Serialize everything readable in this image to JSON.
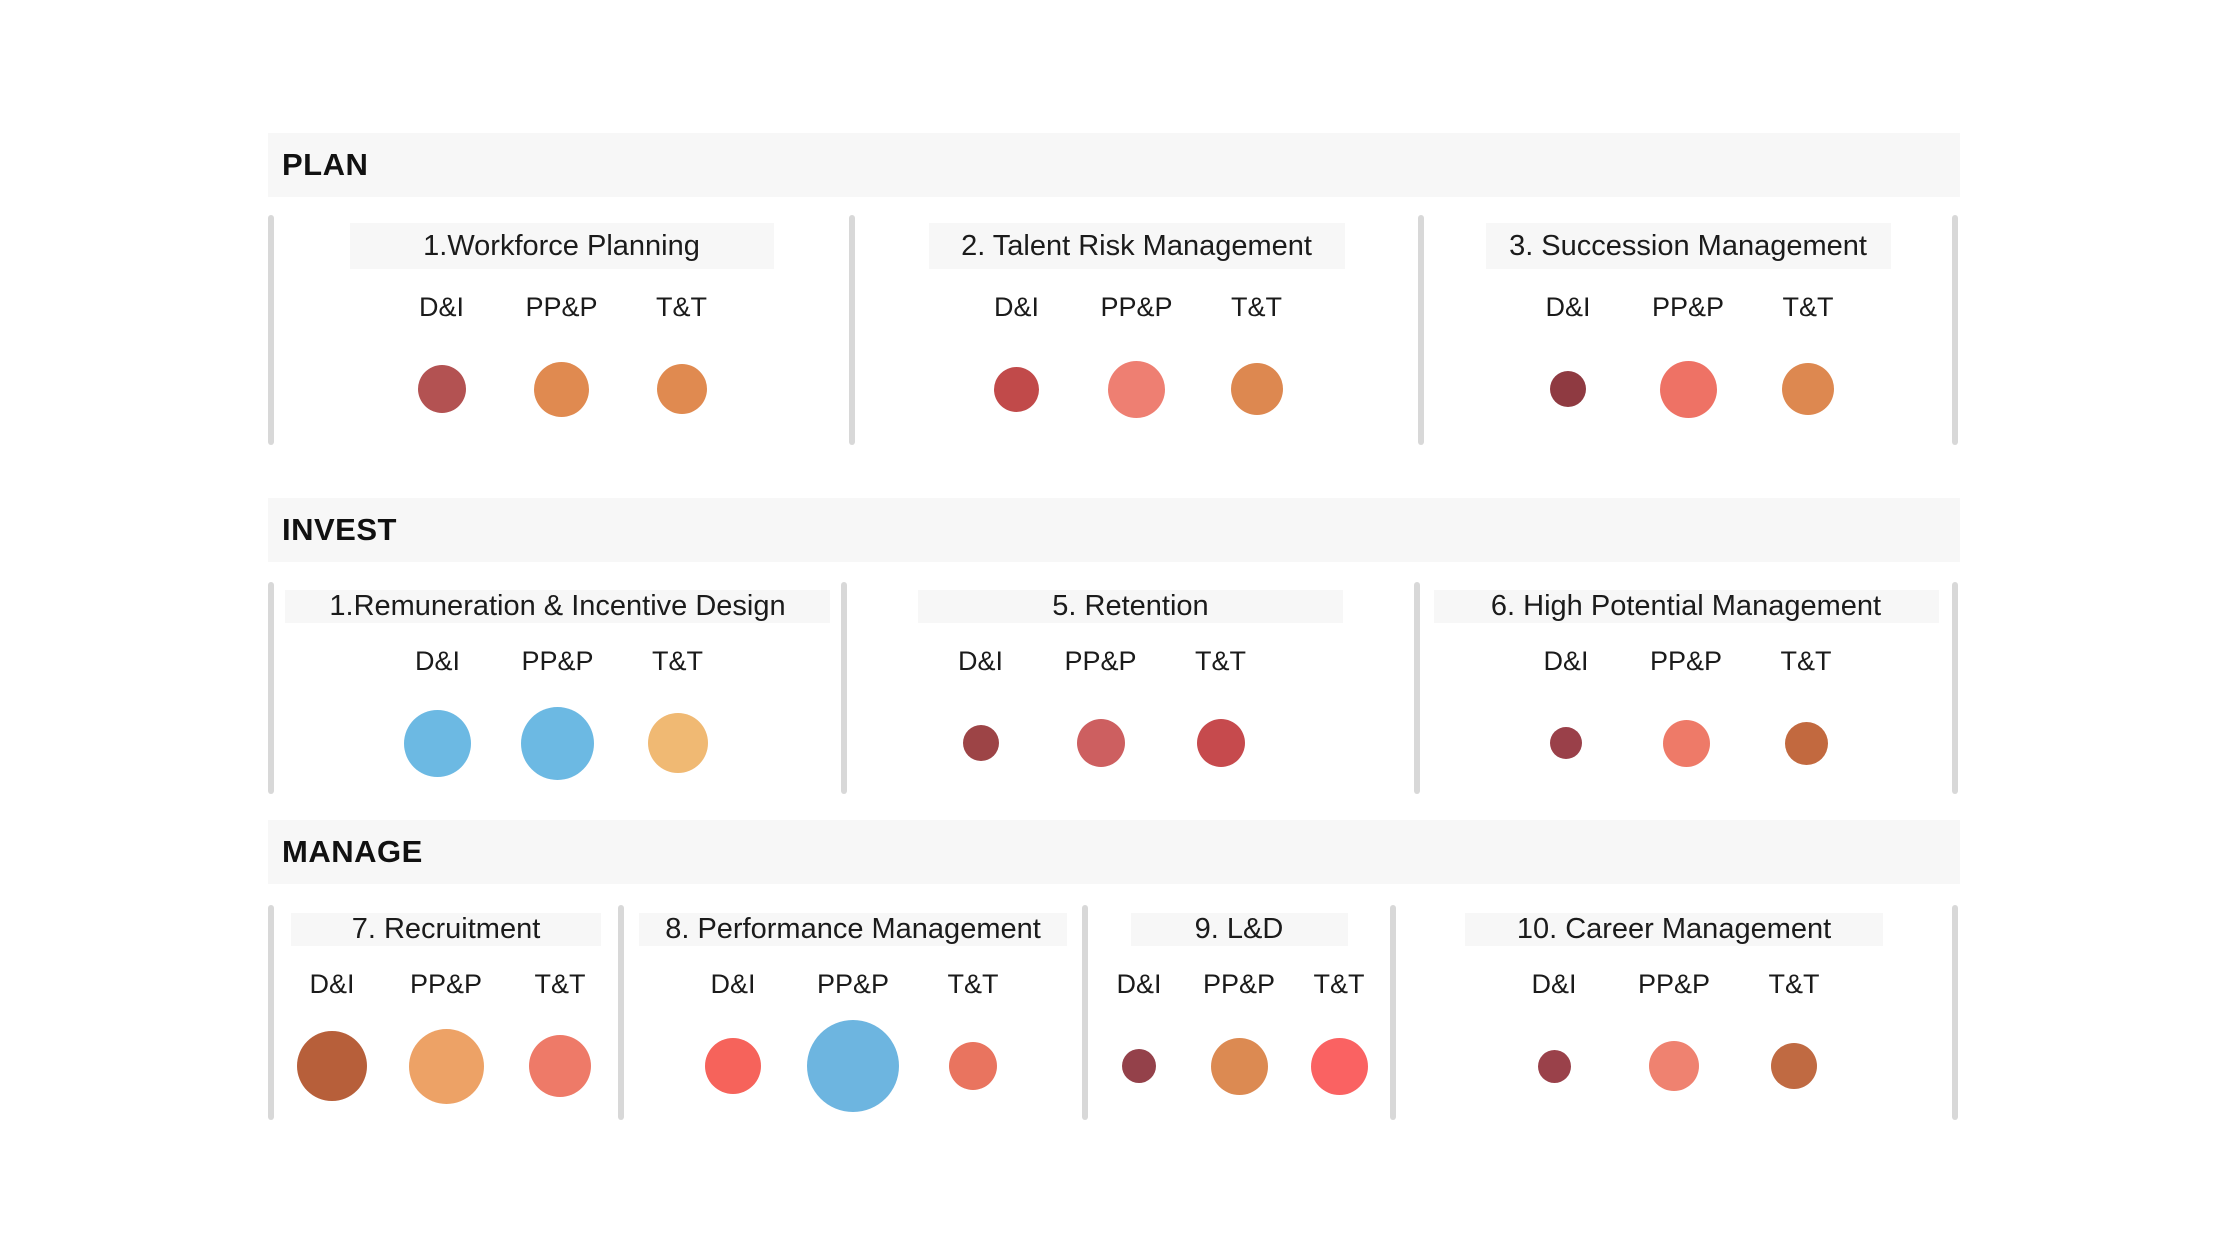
{
  "colors": {
    "background": "#ffffff",
    "section_band_bg": "#f7f7f7",
    "card_title_bg": "#f7f7f7",
    "divider": "#d8d8d8",
    "text": "#1b1b1b"
  },
  "column_labels": [
    "D&I",
    "PP&P",
    "T&T"
  ],
  "sections": [
    {
      "label": "PLAN",
      "cards": [
        {
          "title": "1.Workforce Planning",
          "bubbles": [
            {
              "label": "D&I",
              "color": "#b35252",
              "size": 48
            },
            {
              "label": "PP&P",
              "color": "#e08a50",
              "size": 55
            },
            {
              "label": "T&T",
              "color": "#e08a50",
              "size": 50
            }
          ]
        },
        {
          "title": "2. Talent Risk Management",
          "bubbles": [
            {
              "label": "D&I",
              "color": "#c14a4a",
              "size": 45
            },
            {
              "label": "PP&P",
              "color": "#ee7f72",
              "size": 57
            },
            {
              "label": "T&T",
              "color": "#dd8850",
              "size": 52
            }
          ]
        },
        {
          "title": "3. Succession Management",
          "bubbles": [
            {
              "label": "D&I",
              "color": "#8f3a41",
              "size": 36
            },
            {
              "label": "PP&P",
              "color": "#ee7265",
              "size": 57
            },
            {
              "label": "T&T",
              "color": "#dd8850",
              "size": 52
            }
          ]
        }
      ]
    },
    {
      "label": "INVEST",
      "cards": [
        {
          "title": "1.Remuneration & Incentive Design",
          "bubbles": [
            {
              "label": "D&I",
              "color": "#6cb9e3",
              "size": 67
            },
            {
              "label": "PP&P",
              "color": "#6cb9e3",
              "size": 73
            },
            {
              "label": "T&T",
              "color": "#f0b973",
              "size": 60
            }
          ]
        },
        {
          "title": "5. Retention",
          "bubbles": [
            {
              "label": "D&I",
              "color": "#9d4446",
              "size": 36
            },
            {
              "label": "PP&P",
              "color": "#cd5f60",
              "size": 48
            },
            {
              "label": "T&T",
              "color": "#c64a4d",
              "size": 48
            }
          ]
        },
        {
          "title": "6. High Potential Management",
          "bubbles": [
            {
              "label": "D&I",
              "color": "#9a4049",
              "size": 32
            },
            {
              "label": "PP&P",
              "color": "#ee7a68",
              "size": 47
            },
            {
              "label": "T&T",
              "color": "#c2693f",
              "size": 43
            }
          ]
        }
      ]
    },
    {
      "label": "MANAGE",
      "cards": [
        {
          "title": "7. Recruitment",
          "bubbles": [
            {
              "label": "D&I",
              "color": "#b75f3a",
              "size": 70
            },
            {
              "label": "PP&P",
              "color": "#eda266",
              "size": 75
            },
            {
              "label": "T&T",
              "color": "#ee7a68",
              "size": 62
            }
          ]
        },
        {
          "title": "8. Performance Management",
          "bubbles": [
            {
              "label": "D&I",
              "color": "#f6635b",
              "size": 56
            },
            {
              "label": "PP&P",
              "color": "#6db5e0",
              "size": 92
            },
            {
              "label": "T&T",
              "color": "#e9745f",
              "size": 48
            }
          ]
        },
        {
          "title": "9. L&D",
          "bubbles": [
            {
              "label": "D&I",
              "color": "#94414a",
              "size": 34
            },
            {
              "label": "PP&P",
              "color": "#dc8a52",
              "size": 57
            },
            {
              "label": "T&T",
              "color": "#fa6262",
              "size": 57
            }
          ]
        },
        {
          "title": "10. Career Management",
          "bubbles": [
            {
              "label": "D&I",
              "color": "#9a414a",
              "size": 33
            },
            {
              "label": "PP&P",
              "color": "#ef8270",
              "size": 50
            },
            {
              "label": "T&T",
              "color": "#c06a42",
              "size": 46
            }
          ]
        }
      ]
    }
  ]
}
